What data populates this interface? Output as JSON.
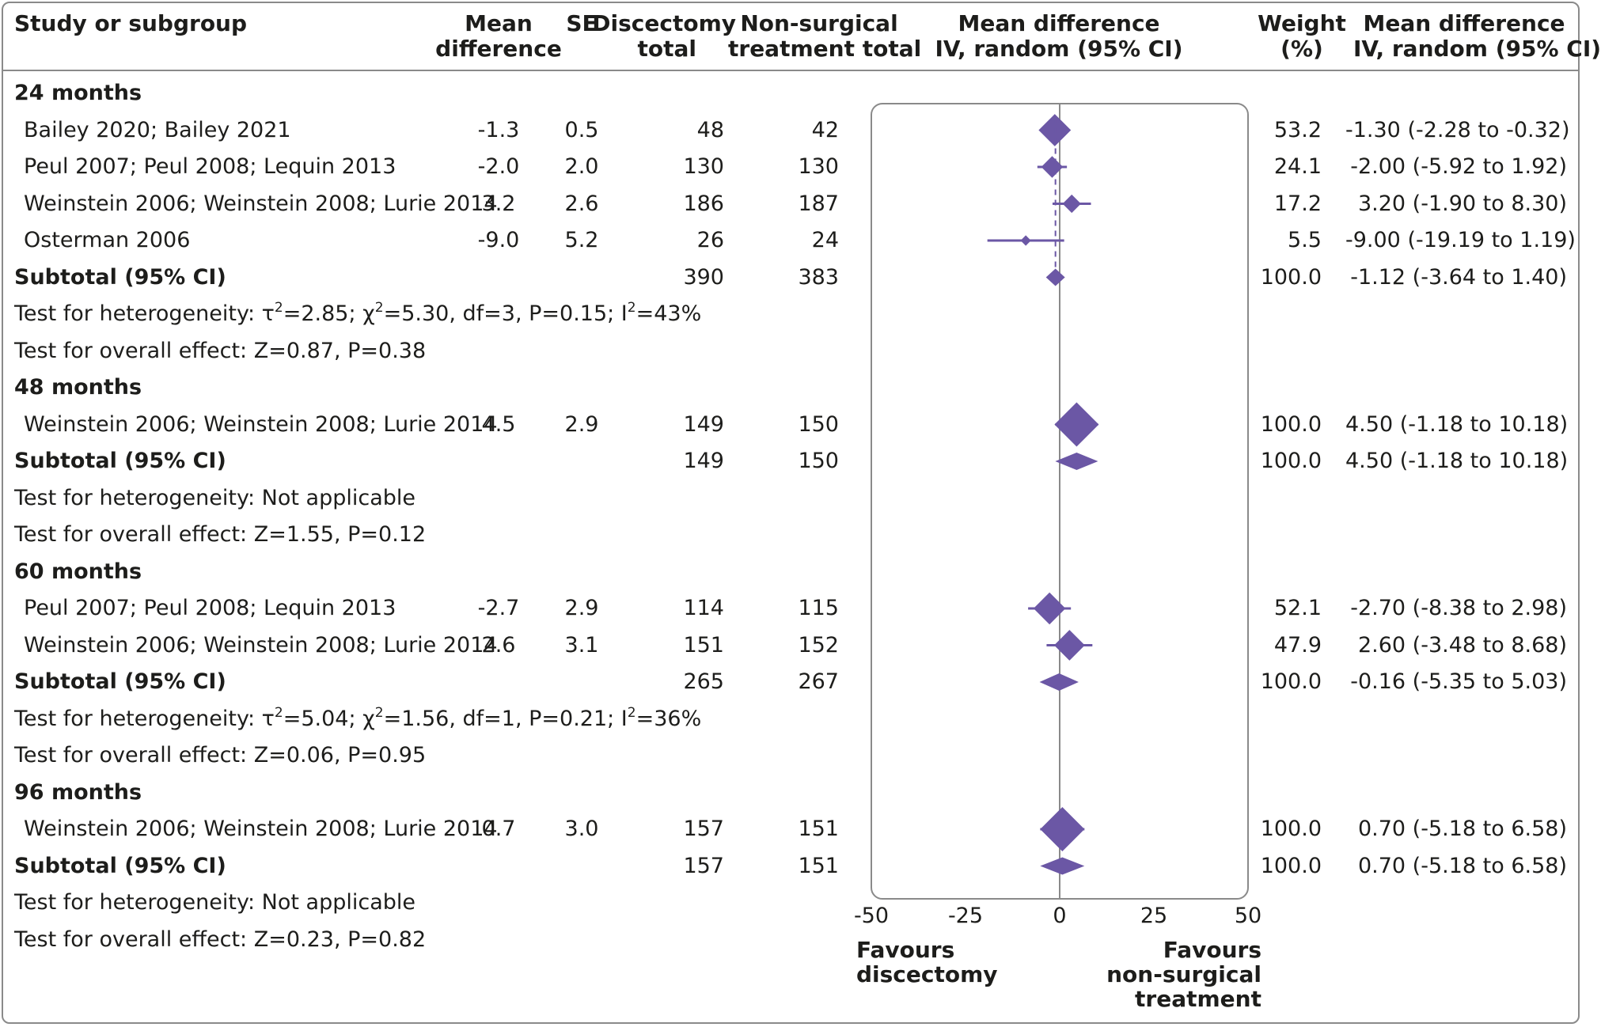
{
  "headers": {
    "study": "Study or subgroup",
    "md_line1": "Mean",
    "md_line2": "difference",
    "se": "SE",
    "disc_line1": "Discectomy",
    "disc_line2": "total",
    "nonsurg_line1": "Non-surgical",
    "nonsurg_line2": "treatment total",
    "plot_line1": "Mean difference",
    "plot_line2": "IV, random (95% CI)",
    "weight_line1": "Weight",
    "weight_line2": "(%)",
    "ci_line1": "Mean difference",
    "ci_line2": "IV, random (95% CI)"
  },
  "colors": {
    "marker": "#6b57a5",
    "frame": "#8a8a8a",
    "text": "#1d1d1b"
  },
  "rows": [
    {
      "kind": "group",
      "label": "24 months"
    },
    {
      "kind": "study",
      "label": "Bailey 2020; Bailey 2021",
      "md": "-1.3",
      "se": "0.5",
      "n1": "48",
      "n2": "42",
      "weight": "53.2",
      "ci": "-1.30 (-2.28 to -0.32)"
    },
    {
      "kind": "study",
      "label": "Peul 2007; Peul 2008; Lequin 2013",
      "md": "-2.0",
      "se": "2.0",
      "n1": "130",
      "n2": "130",
      "weight": "24.1",
      "ci": "-2.00 (-5.92 to 1.92)"
    },
    {
      "kind": "study",
      "label": "Weinstein 2006; Weinstein 2008; Lurie 2014",
      "md": "3.2",
      "se": "2.6",
      "n1": "186",
      "n2": "187",
      "weight": "17.2",
      "ci": "3.20 (-1.90 to 8.30)"
    },
    {
      "kind": "study",
      "label": "Osterman 2006",
      "md": "-9.0",
      "se": "5.2",
      "n1": "26",
      "n2": "24",
      "weight": "5.5",
      "ci": "-9.00 (-19.19 to 1.19)"
    },
    {
      "kind": "subtotal",
      "label": "Subtotal (95% CI)",
      "n1": "390",
      "n2": "383",
      "weight": "100.0",
      "ci": "-1.12 (-3.64 to 1.40)"
    },
    {
      "kind": "note",
      "parts": [
        "Test for heterogeneity: τ",
        "2",
        "=2.85; χ",
        "2",
        "=5.30, df=3, P=0.15; I",
        "2",
        "=43%"
      ]
    },
    {
      "kind": "note",
      "label": "Test for overall effect: Z=0.87, P=0.38"
    },
    {
      "kind": "group",
      "label": "48 months"
    },
    {
      "kind": "study",
      "label": "Weinstein 2006; Weinstein 2008; Lurie 2014",
      "md": "4.5",
      "se": "2.9",
      "n1": "149",
      "n2": "150",
      "weight": "100.0",
      "ci": "4.50 (-1.18 to 10.18)"
    },
    {
      "kind": "subtotal",
      "label": "Subtotal (95% CI)",
      "n1": "149",
      "n2": "150",
      "weight": "100.0",
      "ci": "4.50 (-1.18 to 10.18)"
    },
    {
      "kind": "note",
      "label": "Test for heterogeneity: Not applicable"
    },
    {
      "kind": "note",
      "label": "Test for overall effect: Z=1.55, P=0.12"
    },
    {
      "kind": "group",
      "label": "60 months"
    },
    {
      "kind": "study",
      "label": "Peul 2007; Peul 2008; Lequin 2013",
      "md": "-2.7",
      "se": "2.9",
      "n1": "114",
      "n2": "115",
      "weight": "52.1",
      "ci": "-2.70 (-8.38 to 2.98)"
    },
    {
      "kind": "study",
      "label": "Weinstein 2006; Weinstein 2008; Lurie 2014",
      "md": "2.6",
      "se": "3.1",
      "n1": "151",
      "n2": "152",
      "weight": "47.9",
      "ci": "2.60 (-3.48 to 8.68)"
    },
    {
      "kind": "subtotal",
      "label": "Subtotal (95% CI)",
      "n1": "265",
      "n2": "267",
      "weight": "100.0",
      "ci": "-0.16 (-5.35 to 5.03)"
    },
    {
      "kind": "note",
      "parts": [
        "Test for heterogeneity: τ",
        "2",
        "=5.04; χ",
        "2",
        "=1.56, df=1, P=0.21; I",
        "2",
        "=36%"
      ]
    },
    {
      "kind": "note",
      "label": "Test for overall effect: Z=0.06, P=0.95"
    },
    {
      "kind": "group",
      "label": "96 months"
    },
    {
      "kind": "study",
      "label": "Weinstein 2006; Weinstein 2008; Lurie 2014",
      "md": "0.7",
      "se": "3.0",
      "n1": "157",
      "n2": "151",
      "weight": "100.0",
      "ci": "0.70 (-5.18 to 6.58)"
    },
    {
      "kind": "subtotal",
      "label": "Subtotal (95% CI)",
      "n1": "157",
      "n2": "151",
      "weight": "100.0",
      "ci": "0.70 (-5.18 to 6.58)"
    },
    {
      "kind": "note",
      "label": "Test for heterogeneity: Not applicable"
    },
    {
      "kind": "note",
      "label": "Test for overall effect: Z=0.23, P=0.82"
    }
  ],
  "favours": {
    "left": [
      "Favours",
      "discectomy"
    ],
    "right": [
      "Favours",
      "non-surgical",
      "treatment"
    ]
  },
  "chart_data": {
    "type": "forest",
    "xlim": [
      -50,
      50
    ],
    "xticks": [
      "-50",
      "-25",
      "0",
      "25",
      "50"
    ],
    "xtick_values": [
      -50,
      -25,
      0,
      25,
      50
    ],
    "reference_line": 0,
    "pooled_line": -1.12,
    "subgroups": [
      {
        "name": "24 months",
        "studies": [
          {
            "name": "Bailey 2020; Bailey 2021",
            "estimate": -1.3,
            "lower": -2.28,
            "upper": -0.32,
            "weight": 53.2
          },
          {
            "name": "Peul 2007; Peul 2008; Lequin 2013",
            "estimate": -2.0,
            "lower": -5.92,
            "upper": 1.92,
            "weight": 24.1
          },
          {
            "name": "Weinstein 2006; Weinstein 2008; Lurie 2014",
            "estimate": 3.2,
            "lower": -1.9,
            "upper": 8.3,
            "weight": 17.2
          },
          {
            "name": "Osterman 2006",
            "estimate": -9.0,
            "lower": -19.19,
            "upper": 1.19,
            "weight": 5.5
          }
        ],
        "subtotal": {
          "estimate": -1.12,
          "lower": -3.64,
          "upper": 1.4
        }
      },
      {
        "name": "48 months",
        "studies": [
          {
            "name": "Weinstein 2006; Weinstein 2008; Lurie 2014",
            "estimate": 4.5,
            "lower": -1.18,
            "upper": 10.18,
            "weight": 100.0
          }
        ],
        "subtotal": {
          "estimate": 4.5,
          "lower": -1.18,
          "upper": 10.18
        }
      },
      {
        "name": "60 months",
        "studies": [
          {
            "name": "Peul 2007; Peul 2008; Lequin 2013",
            "estimate": -2.7,
            "lower": -8.38,
            "upper": 2.98,
            "weight": 52.1
          },
          {
            "name": "Weinstein 2006; Weinstein 2008; Lurie 2014",
            "estimate": 2.6,
            "lower": -3.48,
            "upper": 8.68,
            "weight": 47.9
          }
        ],
        "subtotal": {
          "estimate": -0.16,
          "lower": -5.35,
          "upper": 5.03
        }
      },
      {
        "name": "96 months",
        "studies": [
          {
            "name": "Weinstein 2006; Weinstein 2008; Lurie 2014",
            "estimate": 0.7,
            "lower": -5.18,
            "upper": 6.58,
            "weight": 100.0
          }
        ],
        "subtotal": {
          "estimate": 0.7,
          "lower": -5.18,
          "upper": 6.58
        }
      }
    ]
  }
}
